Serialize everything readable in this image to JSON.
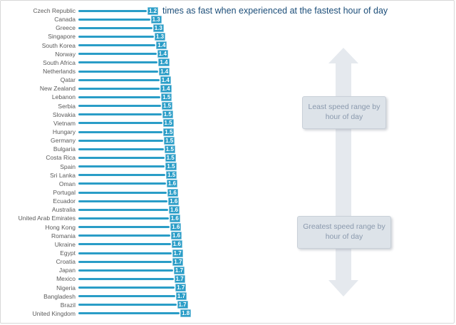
{
  "title": "times as fast when experienced at the fastest hour of day",
  "annotations": {
    "least": "Least speed range by hour of day",
    "greatest": "Greatest speed range by hour of day"
  },
  "colors": {
    "bar": "#2a9dc7",
    "badge_bg": "#2a9dc7",
    "badge_border": "#7fc3dd",
    "badge_text": "#ffffff",
    "title_text": "#1c4e79",
    "country_text": "#5a5a5a",
    "arrow_fill": "#e5e9ee",
    "annotation_box_bg": "#dde3e9",
    "annotation_box_border": "#c9d0d8",
    "annotation_text": "#8a99ad"
  },
  "chart_data": {
    "type": "bar",
    "orientation": "horizontal",
    "title": "times as fast when experienced at the fastest hour of day",
    "unit": "times as fast (fastest hour vs slowest hour of day)",
    "xlim": [
      0,
      1.9
    ],
    "axis_hidden": true,
    "legend": "none",
    "sort": "ascending top-to-bottom",
    "categories": [
      "Czech Republic",
      "Canada",
      "Greece",
      "Singapore",
      "South Korea",
      "Norway",
      "South Africa",
      "Netherlands",
      "Qatar",
      "New Zealand",
      "Lebanon",
      "Serbia",
      "Slovakia",
      "Vietnam",
      "Hungary",
      "Germany",
      "Bulgaria",
      "Costa Rica",
      "Spain",
      "Sri Lanka",
      "Oman",
      "Portugal",
      "Ecuador",
      "Australia",
      "United Arab Emirates",
      "Hong Kong",
      "Romania",
      "Ukraine",
      "Egypt",
      "Croatia",
      "Japan",
      "Mexico",
      "Nigeria",
      "Bangladesh",
      "Brazil",
      "United Kingdom"
    ],
    "labels": [
      "1.2",
      "1.3",
      "1.3",
      "1.3",
      "1.4",
      "1.4",
      "1.4",
      "1.4",
      "1.4",
      "1.4",
      "1.5",
      "1.5",
      "1.5",
      "1.5",
      "1.5",
      "1.5",
      "1.5",
      "1.5",
      "1.5",
      "1.5",
      "1.6",
      "1.6",
      "1.6",
      "1.6",
      "1.6",
      "1.6",
      "1.6",
      "1.6",
      "1.7",
      "1.7",
      "1.7",
      "1.7",
      "1.7",
      "1.7",
      "1.7",
      "1.8"
    ],
    "bar_values": [
      1.2,
      1.26,
      1.3,
      1.33,
      1.36,
      1.38,
      1.4,
      1.41,
      1.43,
      1.44,
      1.45,
      1.46,
      1.47,
      1.48,
      1.49,
      1.5,
      1.51,
      1.52,
      1.53,
      1.54,
      1.55,
      1.56,
      1.58,
      1.59,
      1.6,
      1.62,
      1.63,
      1.64,
      1.65,
      1.66,
      1.68,
      1.69,
      1.71,
      1.72,
      1.74,
      1.8
    ]
  }
}
